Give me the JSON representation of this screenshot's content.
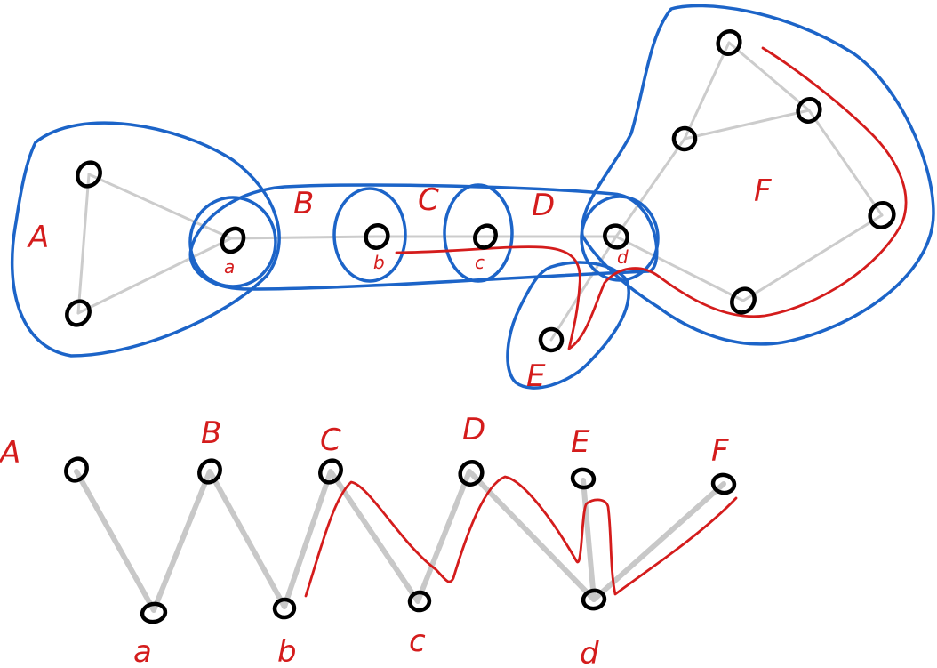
{
  "colors": {
    "node": "#000000",
    "graph_edge": "#cccccc",
    "bag_outline": "#1c64c8",
    "path": "#d41c1c",
    "background": "#ffffff"
  },
  "top_diagram": {
    "bag_labels": [
      "A",
      "B",
      "C",
      "D",
      "E",
      "F"
    ],
    "separator_labels": [
      "a",
      "b",
      "c",
      "d"
    ]
  },
  "bottom_diagram": {
    "top_labels": [
      "A",
      "B",
      "C",
      "D",
      "E",
      "F"
    ],
    "bottom_labels": [
      "a",
      "b",
      "c",
      "d"
    ]
  }
}
